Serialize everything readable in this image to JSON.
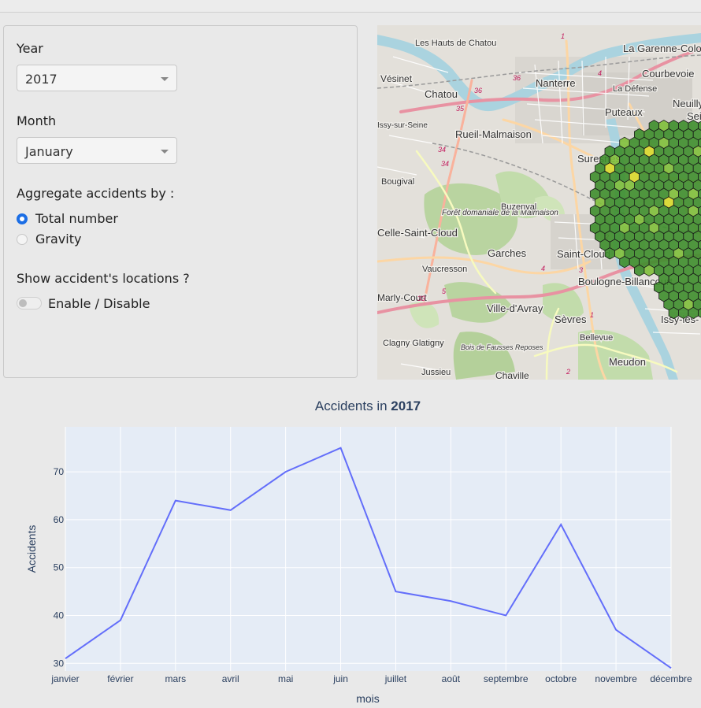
{
  "controls": {
    "year_label": "Year",
    "year_value": "2017",
    "month_label": "Month",
    "month_value": "January",
    "aggregate_label": "Aggregate accidents by :",
    "aggregate_options": [
      "Total number",
      "Gravity"
    ],
    "aggregate_selected": "Total number",
    "locations_label": "Show accident's locations ?",
    "locations_toggle_label": "Enable / Disable",
    "locations_enabled": false
  },
  "map": {
    "places": [
      "La Garenne-Colombes",
      "Les Hauts de Chatou",
      "Vésinet",
      "Nanterre",
      "Courbevoie",
      "Chatou",
      "La Défense",
      "Puteaux",
      "Neuilly",
      "Seine",
      "Issy-sur-Seine",
      "Rueil-Malmaison",
      "Suresnes",
      "Bougival",
      "Forêt domaniale de la Malmaison",
      "Buzenval",
      "Celle-Saint-Cloud",
      "Garches",
      "Saint-Cloud",
      "Vaucresson",
      "Boulogne-Billancourt",
      "Ville-d'Avray",
      "Sèvres",
      "Issy-les-",
      "Bellevue",
      "Clagny Glatigny",
      "Bois de Fausses Reposes",
      "Meudon",
      "Jussieu",
      "Chaville",
      "Marly-Court"
    ],
    "road_numbers": [
      "1",
      "36",
      "4",
      "36",
      "35",
      "34",
      "34",
      "2",
      "4",
      "3",
      "5",
      "33",
      "1",
      "2"
    ],
    "hex_colors": {
      "low": "#3e8e2c",
      "mid": "#7fbf3a",
      "high": "#d9d92a"
    }
  },
  "chart_data": {
    "type": "line",
    "title_prefix": "Accidents in ",
    "title_year": "2017",
    "xlabel": "mois",
    "ylabel": "Accidents",
    "categories": [
      "janvier",
      "février",
      "mars",
      "avril",
      "mai",
      "juin",
      "juillet",
      "août",
      "septembre",
      "octobre",
      "novembre",
      "décembre"
    ],
    "series": [
      {
        "values": [
          31,
          39,
          64,
          62,
          70,
          75,
          45,
          43,
          40,
          59,
          37,
          29
        ]
      }
    ],
    "ylim": [
      28.4,
      79.4
    ],
    "yticks": [
      30,
      40,
      50,
      60,
      70
    ],
    "grid": true,
    "line_color": "#636efa",
    "plot_bg": "#e5ecf6"
  }
}
